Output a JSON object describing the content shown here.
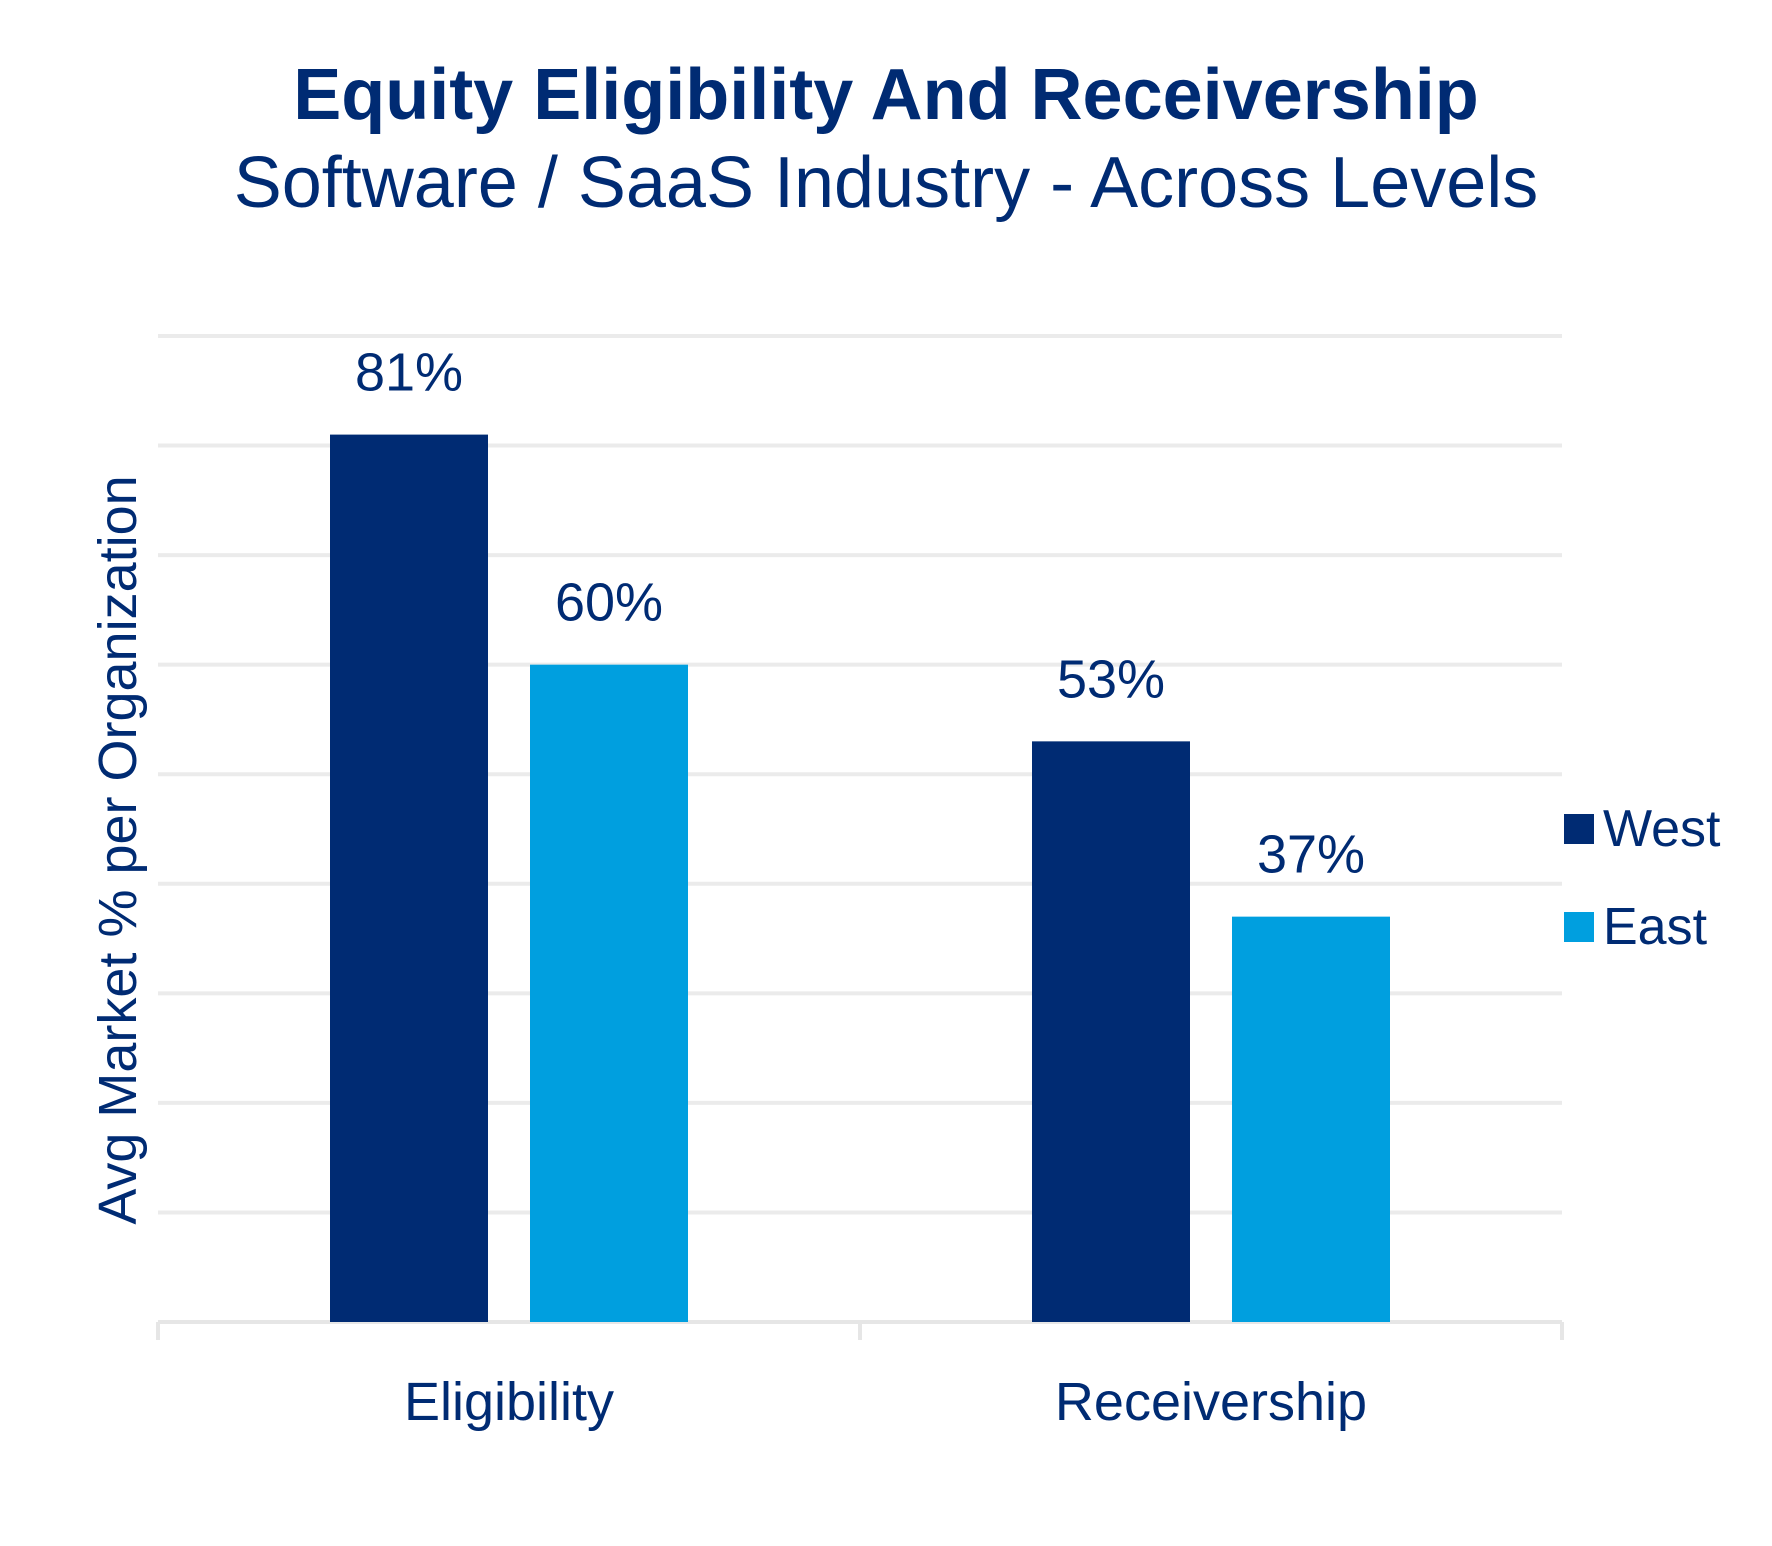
{
  "chart_data": {
    "type": "bar",
    "title": "Equity Eligibility And Receivership",
    "subtitle": "Software / SaaS Industry - Across Levels",
    "ylabel": "Avg Market % per Organization",
    "xlabel": "",
    "categories": [
      "Eligibility",
      "Receivership"
    ],
    "series": [
      {
        "name": "West",
        "color": "#002b73",
        "values": [
          81,
          53
        ],
        "labels": [
          "81%",
          "53%"
        ]
      },
      {
        "name": "East",
        "color": "#009fdf",
        "values": [
          60,
          37
        ],
        "labels": [
          "60%",
          "37%"
        ]
      }
    ],
    "ylim": [
      0,
      90
    ],
    "gridlines": true,
    "legend": "right"
  }
}
